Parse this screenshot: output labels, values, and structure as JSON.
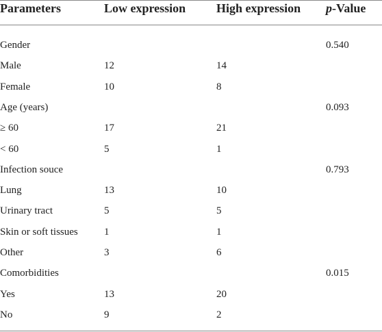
{
  "table": {
    "columns": [
      "Parameters",
      "Low expression",
      "High expression",
      {
        "emphasis": "p",
        "rest": "-Value"
      }
    ],
    "rows": [
      {
        "parameter": "Gender",
        "p_value": "0.540"
      },
      {
        "parameter": "Male",
        "low": "12",
        "high": "14"
      },
      {
        "parameter": "Female",
        "low": "10",
        "high": "8"
      },
      {
        "parameter": "Age (years)",
        "p_value": "0.093"
      },
      {
        "parameter": "≥ 60",
        "low": "17",
        "high": "21"
      },
      {
        "parameter": "< 60",
        "low": "5",
        "high": "1"
      },
      {
        "parameter": "Infection souce",
        "p_value": "0.793"
      },
      {
        "parameter": "Lung",
        "low": "13",
        "high": "10"
      },
      {
        "parameter": "Urinary tract",
        "low": "5",
        "high": "5"
      },
      {
        "parameter": "Skin or soft tissues",
        "low": "1",
        "high": "1"
      },
      {
        "parameter": "Other",
        "low": "3",
        "high": "6"
      },
      {
        "parameter": "Comorbidities",
        "p_value": "0.015"
      },
      {
        "parameter": "Yes",
        "low": "13",
        "high": "20"
      },
      {
        "parameter": "No",
        "low": "9",
        "high": "2"
      }
    ]
  }
}
